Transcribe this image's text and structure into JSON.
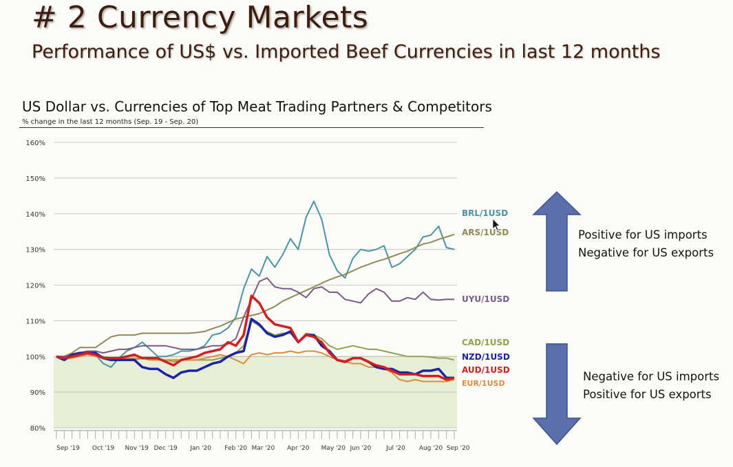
{
  "slide": {
    "title": "# 2 Currency Markets",
    "subtitle": "Performance of US$ vs. Imported Beef Currencies in last 12 months"
  },
  "annotations": {
    "up_line1": "Positive for US imports",
    "up_line2": "Negative for US exports",
    "down_line1": "Negative for US imports",
    "down_line2": "Positive for US exports",
    "up_arrow_icon": "up-arrow-icon",
    "down_arrow_icon": "down-arrow-icon",
    "arrow_color": "#5b6fad"
  },
  "chart_data": {
    "type": "line",
    "title": "US Dollar vs. Currencies of Top Meat Trading Partners & Competitors",
    "subtitle": "% change in the last 12 months (Sep. 19 - Sep. 20)",
    "ylim": [
      80,
      160
    ],
    "yticks": [
      80,
      90,
      100,
      110,
      120,
      130,
      140,
      150,
      160
    ],
    "ytick_labels": [
      "80%",
      "90%",
      "100%",
      "110%",
      "120%",
      "130%",
      "140%",
      "150%",
      "160%"
    ],
    "grid": true,
    "shaded_band": [
      80,
      100
    ],
    "shaded_color": "#e6eed6",
    "x_points": 52,
    "x_labels": [
      {
        "label": "Sep '19",
        "at": 1.5
      },
      {
        "label": "Oct '19",
        "at": 6
      },
      {
        "label": "Nov '19",
        "at": 10.3
      },
      {
        "label": "Dec '19",
        "at": 14
      },
      {
        "label": "Jan '20",
        "at": 18.5
      },
      {
        "label": "Feb '20",
        "at": 23
      },
      {
        "label": "Mar '20",
        "at": 26.5
      },
      {
        "label": "Apr '20",
        "at": 31
      },
      {
        "label": "May '20",
        "at": 35.5
      },
      {
        "label": "Jun '20",
        "at": 39
      },
      {
        "label": "Jul '20",
        "at": 43.5
      },
      {
        "label": "Aug '20",
        "at": 48
      },
      {
        "label": "Sep '20",
        "at": 51.5
      }
    ],
    "series": [
      {
        "name": "BRL/1USD",
        "color": "#4a93a2",
        "width": 2,
        "values": [
          100,
          99.5,
          100.5,
          101,
          101.5,
          100.5,
          98,
          97,
          99.5,
          101.5,
          102.5,
          104,
          102,
          100,
          100,
          100.5,
          101.5,
          101.5,
          102,
          103,
          106,
          106.5,
          108,
          111,
          119,
          124.5,
          122.5,
          128,
          125,
          128.5,
          133,
          130,
          139,
          143.5,
          138.5,
          128.5,
          124,
          122,
          127.5,
          130,
          129.5,
          130,
          131,
          125,
          126,
          128,
          130,
          133.5,
          134,
          136.5,
          130.5,
          130,
          127.5,
          136.5,
          137
        ]
      },
      {
        "name": "ARS/1USD",
        "color": "#8f8a55",
        "width": 2,
        "values": [
          100,
          100,
          101,
          102.5,
          102.5,
          102.5,
          104,
          105.5,
          106,
          106,
          106,
          106.5,
          106.5,
          106.5,
          106.5,
          106.5,
          106.5,
          106.5,
          106.7,
          107,
          107.8,
          108.5,
          109.5,
          110.5,
          111,
          111.5,
          112,
          113,
          114,
          115.5,
          116.5,
          117.5,
          118.5,
          119.5,
          120.5,
          121.5,
          122.3,
          123,
          124,
          125,
          125.8,
          126.6,
          127.2,
          128,
          128.8,
          129.5,
          130.5,
          131.5,
          132,
          132.8,
          133.5,
          134.2,
          135
        ]
      },
      {
        "name": "UYU/1USD",
        "color": "#7a5a82",
        "width": 2,
        "values": [
          100,
          100,
          100.5,
          101,
          101.5,
          101.5,
          101,
          101.5,
          102,
          102,
          102.5,
          103,
          103,
          103,
          103,
          102.5,
          102,
          102,
          102,
          102.5,
          103,
          103,
          103.5,
          105,
          111,
          116,
          121,
          122,
          119.5,
          119,
          119,
          118,
          116.5,
          119,
          119.5,
          118,
          118,
          116,
          115.5,
          115,
          117.5,
          119,
          118,
          115.5,
          115.5,
          116.5,
          116,
          118,
          116,
          115.8,
          116,
          116,
          116
        ]
      },
      {
        "name": "CAD/1USD",
        "color": "#8ea24d",
        "width": 2,
        "values": [
          100,
          99.5,
          100,
          100.5,
          101,
          100.5,
          100,
          99.5,
          99,
          99,
          99,
          99.5,
          99,
          99,
          99,
          99,
          99,
          99,
          99,
          99,
          99,
          99.5,
          100,
          101,
          103,
          110,
          108.5,
          107,
          106,
          106.5,
          106.5,
          104,
          106.5,
          106,
          105,
          103,
          102,
          102.5,
          103,
          102.5,
          102,
          102,
          101.5,
          101,
          100.5,
          100,
          100,
          100,
          99.8,
          99.5,
          99.5,
          99,
          99.5,
          100,
          100.5
        ]
      },
      {
        "name": "NZD/1USD",
        "color": "#1a23a3",
        "width": 3.5,
        "values": [
          100,
          99,
          100.5,
          101,
          101,
          101,
          99.5,
          99,
          99,
          99,
          99,
          97,
          96.5,
          96.5,
          95,
          94,
          95.5,
          96,
          96,
          97,
          98,
          98.5,
          100,
          101,
          101.5,
          110.5,
          109,
          106.5,
          105.5,
          106,
          107,
          104,
          106,
          106,
          103,
          101.5,
          99,
          98.5,
          99.5,
          99.5,
          98.5,
          97,
          96.5,
          96.5,
          95.5,
          95.5,
          95,
          96,
          96,
          96.5,
          94,
          94,
          94,
          96,
          96.5,
          95.5
        ]
      },
      {
        "name": "AUD/1USD",
        "color": "#d41d1d",
        "width": 3.5,
        "values": [
          100,
          99.5,
          100,
          100.5,
          101,
          100.5,
          99.5,
          99.5,
          99.5,
          100,
          100.5,
          99.5,
          99.5,
          99.5,
          98.5,
          97.5,
          99,
          99.5,
          100,
          101,
          101.5,
          102,
          104,
          103,
          106,
          117,
          115,
          111,
          109,
          108.5,
          108,
          104,
          106,
          105.5,
          104,
          101,
          99,
          98.5,
          99.5,
          99.5,
          98.5,
          97.5,
          97,
          96,
          95,
          95,
          95,
          94.5,
          94.5,
          94.5,
          93.5,
          94,
          93.5,
          95.5,
          97,
          96
        ]
      },
      {
        "name": "EUR/1USD",
        "color": "#d98c3c",
        "width": 2,
        "values": [
          100,
          99.5,
          99.5,
          100,
          100.5,
          100,
          99.5,
          99.5,
          99,
          99.5,
          99.5,
          99.5,
          99,
          99,
          99,
          98.5,
          99,
          99,
          99,
          99.5,
          100,
          100.5,
          100,
          99,
          98,
          100.5,
          101,
          100.5,
          101,
          101,
          101.5,
          101,
          101.5,
          101.5,
          101,
          100,
          99,
          98.5,
          98,
          98,
          97,
          97,
          96.5,
          95.5,
          93.5,
          93,
          93.5,
          93,
          93,
          93,
          93,
          93.5,
          94,
          94,
          94.5,
          94
        ]
      }
    ]
  }
}
